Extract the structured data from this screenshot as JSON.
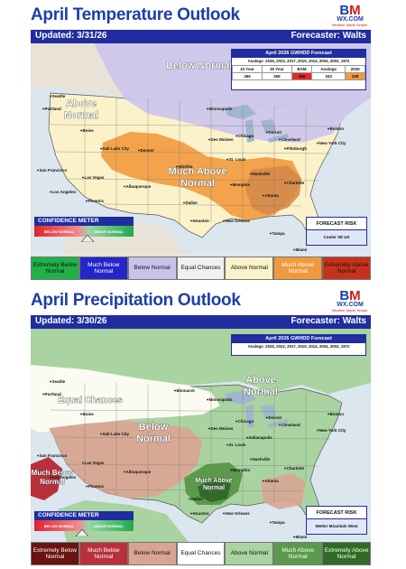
{
  "temperature": {
    "title": "April Temperature Outlook",
    "logo": {
      "mark_b": "B",
      "mark_m": "M",
      "domain": "WX.COM",
      "tagline": "Weather Made Simple."
    },
    "updated": "Updated: 3/31/26",
    "forecaster": "Forecaster: Walts",
    "info": {
      "heading": "April 2026 GWHDD Forecast",
      "analogs": "Analogs: 2025, 2023, 2017, 2015, 2014, 2004, 2002, 1972",
      "columns": [
        "10 Year",
        "30 Year",
        "BAM",
        "Analogs",
        "2025"
      ],
      "values": [
        "365",
        "369",
        "386",
        "343",
        "328"
      ],
      "value_colors": [
        "#ffffff",
        "#ffffff",
        "#e8262a",
        "#ffffff",
        "#f39a3c"
      ]
    },
    "regions": {
      "below_normal": "Below Normal",
      "above_normal": "Above Normal",
      "much_above_normal": "Much Above Normal"
    },
    "confidence": {
      "heading": "CONFIDENCE METER",
      "left": "BELOW NORMAL",
      "right": "ABOVE NORMAL"
    },
    "risk": {
      "heading": "FORECAST RISK",
      "text": "Cooler SE US"
    },
    "legend": [
      {
        "label": "Extremely Below Normal",
        "color": "#20b148",
        "text_color": "#111111"
      },
      {
        "label": "Much Below Normal",
        "color": "#2326c9",
        "text_color": "#ffffff"
      },
      {
        "label": "Below Normal",
        "color": "#c9c3ea",
        "text_color": "#111111"
      },
      {
        "label": "Equal Chances",
        "color": "#f0f0f0",
        "text_color": "#111111"
      },
      {
        "label": "Above Normal",
        "color": "#fbf2c9",
        "text_color": "#111111"
      },
      {
        "label": "Much Above Normal",
        "color": "#f19a3d",
        "text_color": "#ffffff"
      },
      {
        "label": "Extremely Above Normal",
        "color": "#c8321c",
        "text_color": "#111111"
      }
    ],
    "cities": [
      "Seattle",
      "Portland",
      "Minneapolis",
      "Chicago",
      "Des Moines",
      "Detroit",
      "Cleveland",
      "Pittsburgh",
      "New York City",
      "Boston",
      "Denver",
      "St. Louis",
      "Salt Lake City",
      "San Francisco",
      "Las Vegas",
      "Los Angeles",
      "Phoenix",
      "Albuquerque",
      "Memphis",
      "Nashville",
      "Charlotte",
      "Atlanta",
      "Dallas",
      "Houston",
      "New Orleans",
      "Tampa",
      "Miami",
      "Wichita",
      "Boise"
    ]
  },
  "precipitation": {
    "title": "April Precipitation Outlook",
    "logo": {
      "mark_b": "B",
      "mark_m": "M",
      "domain": "WX.COM",
      "tagline": "Weather Made Simple."
    },
    "updated": "Updated: 3/30/26",
    "forecaster": "Forecaster: Walts",
    "info": {
      "heading": "April 2026 GWHDD Forecast",
      "analogs": "Analogs: 2025, 2023, 2017, 2015, 2014, 2004, 2002, 1972"
    },
    "regions": {
      "equal_chances": "Equal Chances",
      "above_normal": "Above Normal",
      "below_normal": "Below Normal",
      "much_below_normal": "Much Below Normal",
      "much_above_normal": "Much Above Normal"
    },
    "confidence": {
      "heading": "CONFIDENCE METER",
      "left": "BELOW NORMAL",
      "right": "ABOVE NORMAL"
    },
    "risk": {
      "heading": "FORECAST RISK",
      "text": "Wetter Mountain West"
    },
    "legend": [
      {
        "label": "Extremely Below Normal",
        "color": "#6b1212",
        "text_color": "#ffffff"
      },
      {
        "label": "Much Below Normal",
        "color": "#b8303c",
        "text_color": "#ffffff"
      },
      {
        "label": "Below Normal",
        "color": "#d9a592",
        "text_color": "#111111"
      },
      {
        "label": "Equal Chances",
        "color": "#ffffff",
        "text_color": "#111111"
      },
      {
        "label": "Above Normal",
        "color": "#a9d3a1",
        "text_color": "#111111"
      },
      {
        "label": "Much Above Normal",
        "color": "#5b9a4a",
        "text_color": "#ffffff"
      },
      {
        "label": "Extremely Above Normal",
        "color": "#2f6b24",
        "text_color": "#ffffff"
      }
    ],
    "cities": [
      "Seattle",
      "Portland",
      "Bismarck",
      "Minneapolis",
      "Chicago",
      "Des Moines",
      "Detroit",
      "Indianapolis",
      "Cleveland",
      "New York City",
      "Boston",
      "Boise",
      "Salt Lake City",
      "San Francisco",
      "Las Vegas",
      "Los Angeles",
      "Phoenix",
      "Albuquerque",
      "St. Louis",
      "Memphis",
      "Nashville",
      "Charlotte",
      "Atlanta",
      "Dallas",
      "Houston",
      "New Orleans",
      "Tampa",
      "Miami"
    ]
  }
}
